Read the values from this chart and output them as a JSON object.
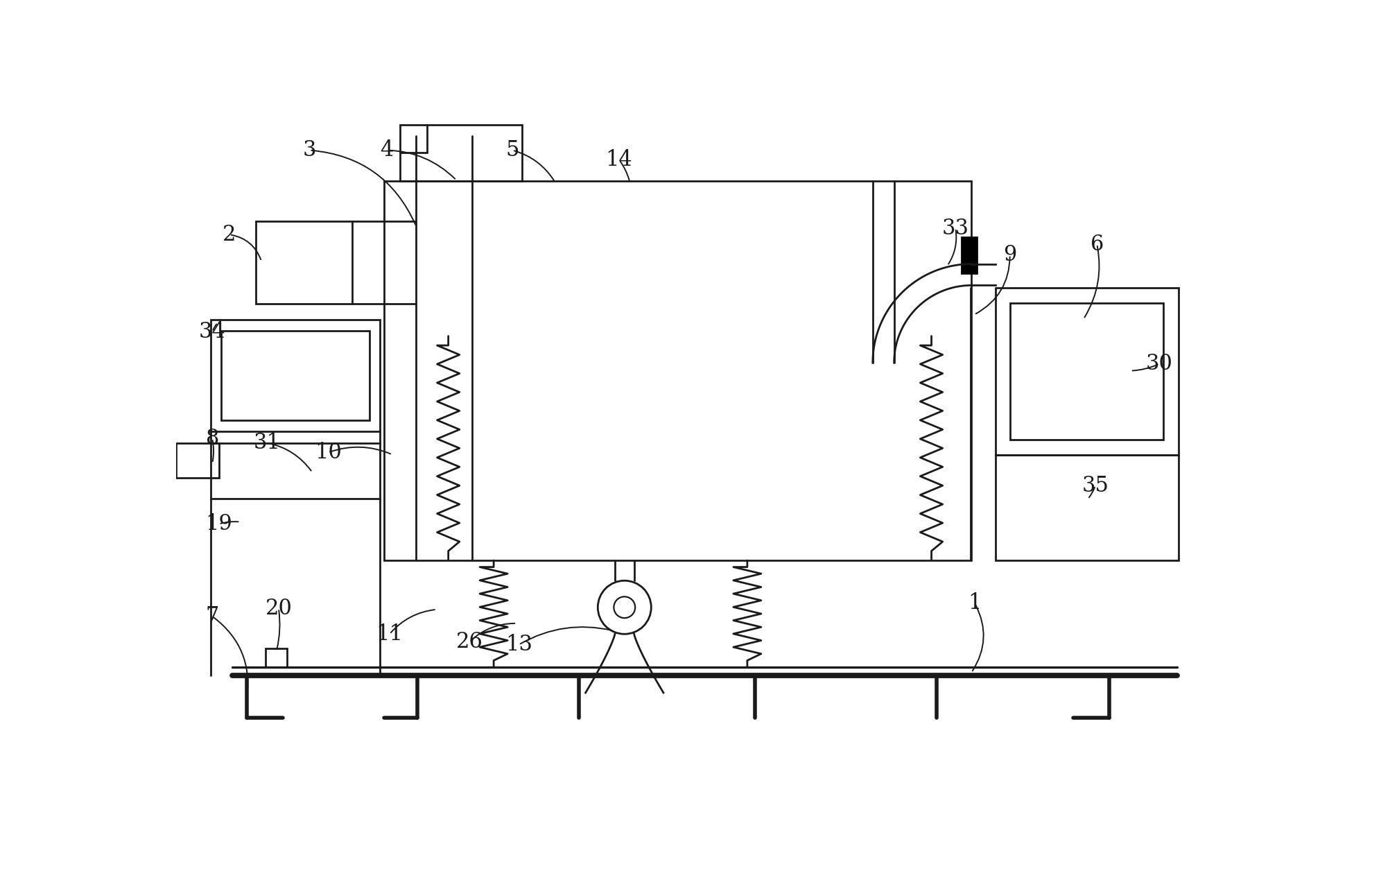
{
  "bg_color": "#ffffff",
  "line_color": "#1a1a1a",
  "label_color": "#1a1a1a",
  "line_width": 2.0,
  "label_fontsize": 22,
  "fig_width": 19.92,
  "fig_height": 12.79
}
